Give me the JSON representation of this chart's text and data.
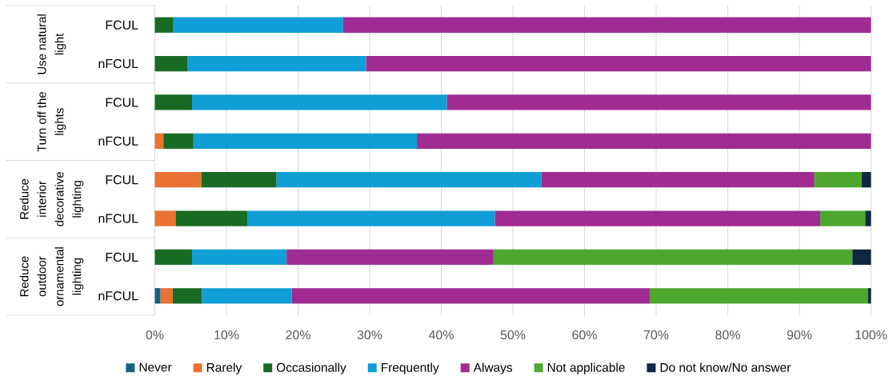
{
  "chart_data": {
    "type": "bar",
    "orientation": "horizontal",
    "stacked": true,
    "categories": [
      "FCUL",
      "nFCUL",
      "FCUL",
      "nFCUL",
      "FCUL",
      "nFCUL",
      "FCUL",
      "nFCUL"
    ],
    "annotations": [
      "Use natural light",
      "Turn off the lights",
      "Reduce interior decorative lighting",
      "Reduce outdoor ornamental lighting"
    ],
    "series": [
      {
        "name": "Never",
        "color": "#156082",
        "values": [
          0,
          0,
          0,
          0,
          0,
          0,
          0,
          0.8
        ]
      },
      {
        "name": "Rarely",
        "color": "#e97132",
        "values": [
          0,
          0,
          0,
          1.2,
          6.5,
          2.9,
          0,
          1.7
        ]
      },
      {
        "name": "Occasionally",
        "color": "#196b24",
        "values": [
          2.6,
          4.6,
          5.2,
          4.2,
          10.5,
          10.0,
          5.2,
          4.1
        ]
      },
      {
        "name": "Frequently",
        "color": "#0f9ed5",
        "values": [
          23.7,
          24.9,
          35.6,
          31.2,
          37.0,
          34.6,
          13.2,
          12.5
        ]
      },
      {
        "name": "Always",
        "color": "#a02b93",
        "values": [
          73.7,
          70.5,
          59.2,
          63.4,
          38.1,
          45.4,
          28.9,
          50.0
        ]
      },
      {
        "name": "Not applicable",
        "color": "#4ea72e",
        "values": [
          0,
          0,
          0,
          0,
          6.6,
          6.3,
          50.1,
          30.5
        ]
      },
      {
        "name": "Do not know/No answer",
        "color": "#0e2841",
        "values": [
          0,
          0,
          0,
          0,
          1.3,
          0.8,
          2.6,
          0.4
        ]
      }
    ],
    "xlim": [
      0,
      100
    ],
    "xticks": [
      {
        "value": 0,
        "label": "0%"
      },
      {
        "value": 10,
        "label": "10%"
      },
      {
        "value": 20,
        "label": "20%"
      },
      {
        "value": 30,
        "label": "30%"
      },
      {
        "value": 40,
        "label": "40%"
      },
      {
        "value": 50,
        "label": "50%"
      },
      {
        "value": 60,
        "label": "60%"
      },
      {
        "value": 70,
        "label": "70%"
      },
      {
        "value": 80,
        "label": "80%"
      },
      {
        "value": 90,
        "label": "90%"
      },
      {
        "value": 100,
        "label": "100%"
      }
    ],
    "grid": "x",
    "legend": "bottom"
  }
}
